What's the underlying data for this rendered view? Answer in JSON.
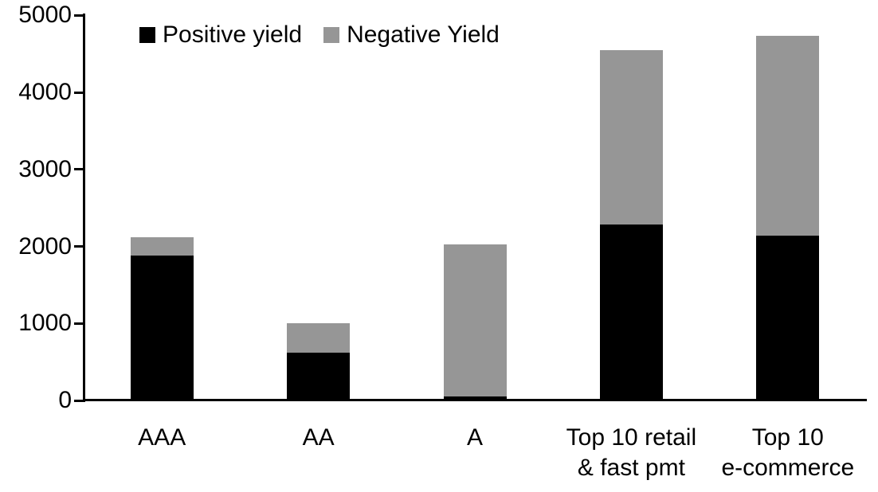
{
  "chart_data": {
    "type": "bar",
    "stacked": true,
    "title": "",
    "xlabel": "",
    "ylabel": "",
    "categories": [
      "AAA",
      "AA",
      "A",
      "Top 10 retail\n& fast pmt",
      "Top 10\ne-commerce"
    ],
    "series": [
      {
        "name": "Positive yield",
        "color": "#000000",
        "values": [
          1880,
          620,
          50,
          2280,
          2140
        ]
      },
      {
        "name": "Negative Yield",
        "color": "#969696",
        "values": [
          240,
          380,
          1980,
          2270,
          2600
        ]
      }
    ],
    "totals": [
      2120,
      1000,
      2030,
      4550,
      4740
    ],
    "ylim": [
      0,
      5000
    ],
    "yticks": [
      0,
      1000,
      2000,
      3000,
      4000,
      5000
    ],
    "grid": false,
    "legend_position": "top-left"
  },
  "colors": {
    "background": "#ffffff",
    "axis": "#000000",
    "positive_series": "#000000",
    "negative_series": "#969696"
  }
}
